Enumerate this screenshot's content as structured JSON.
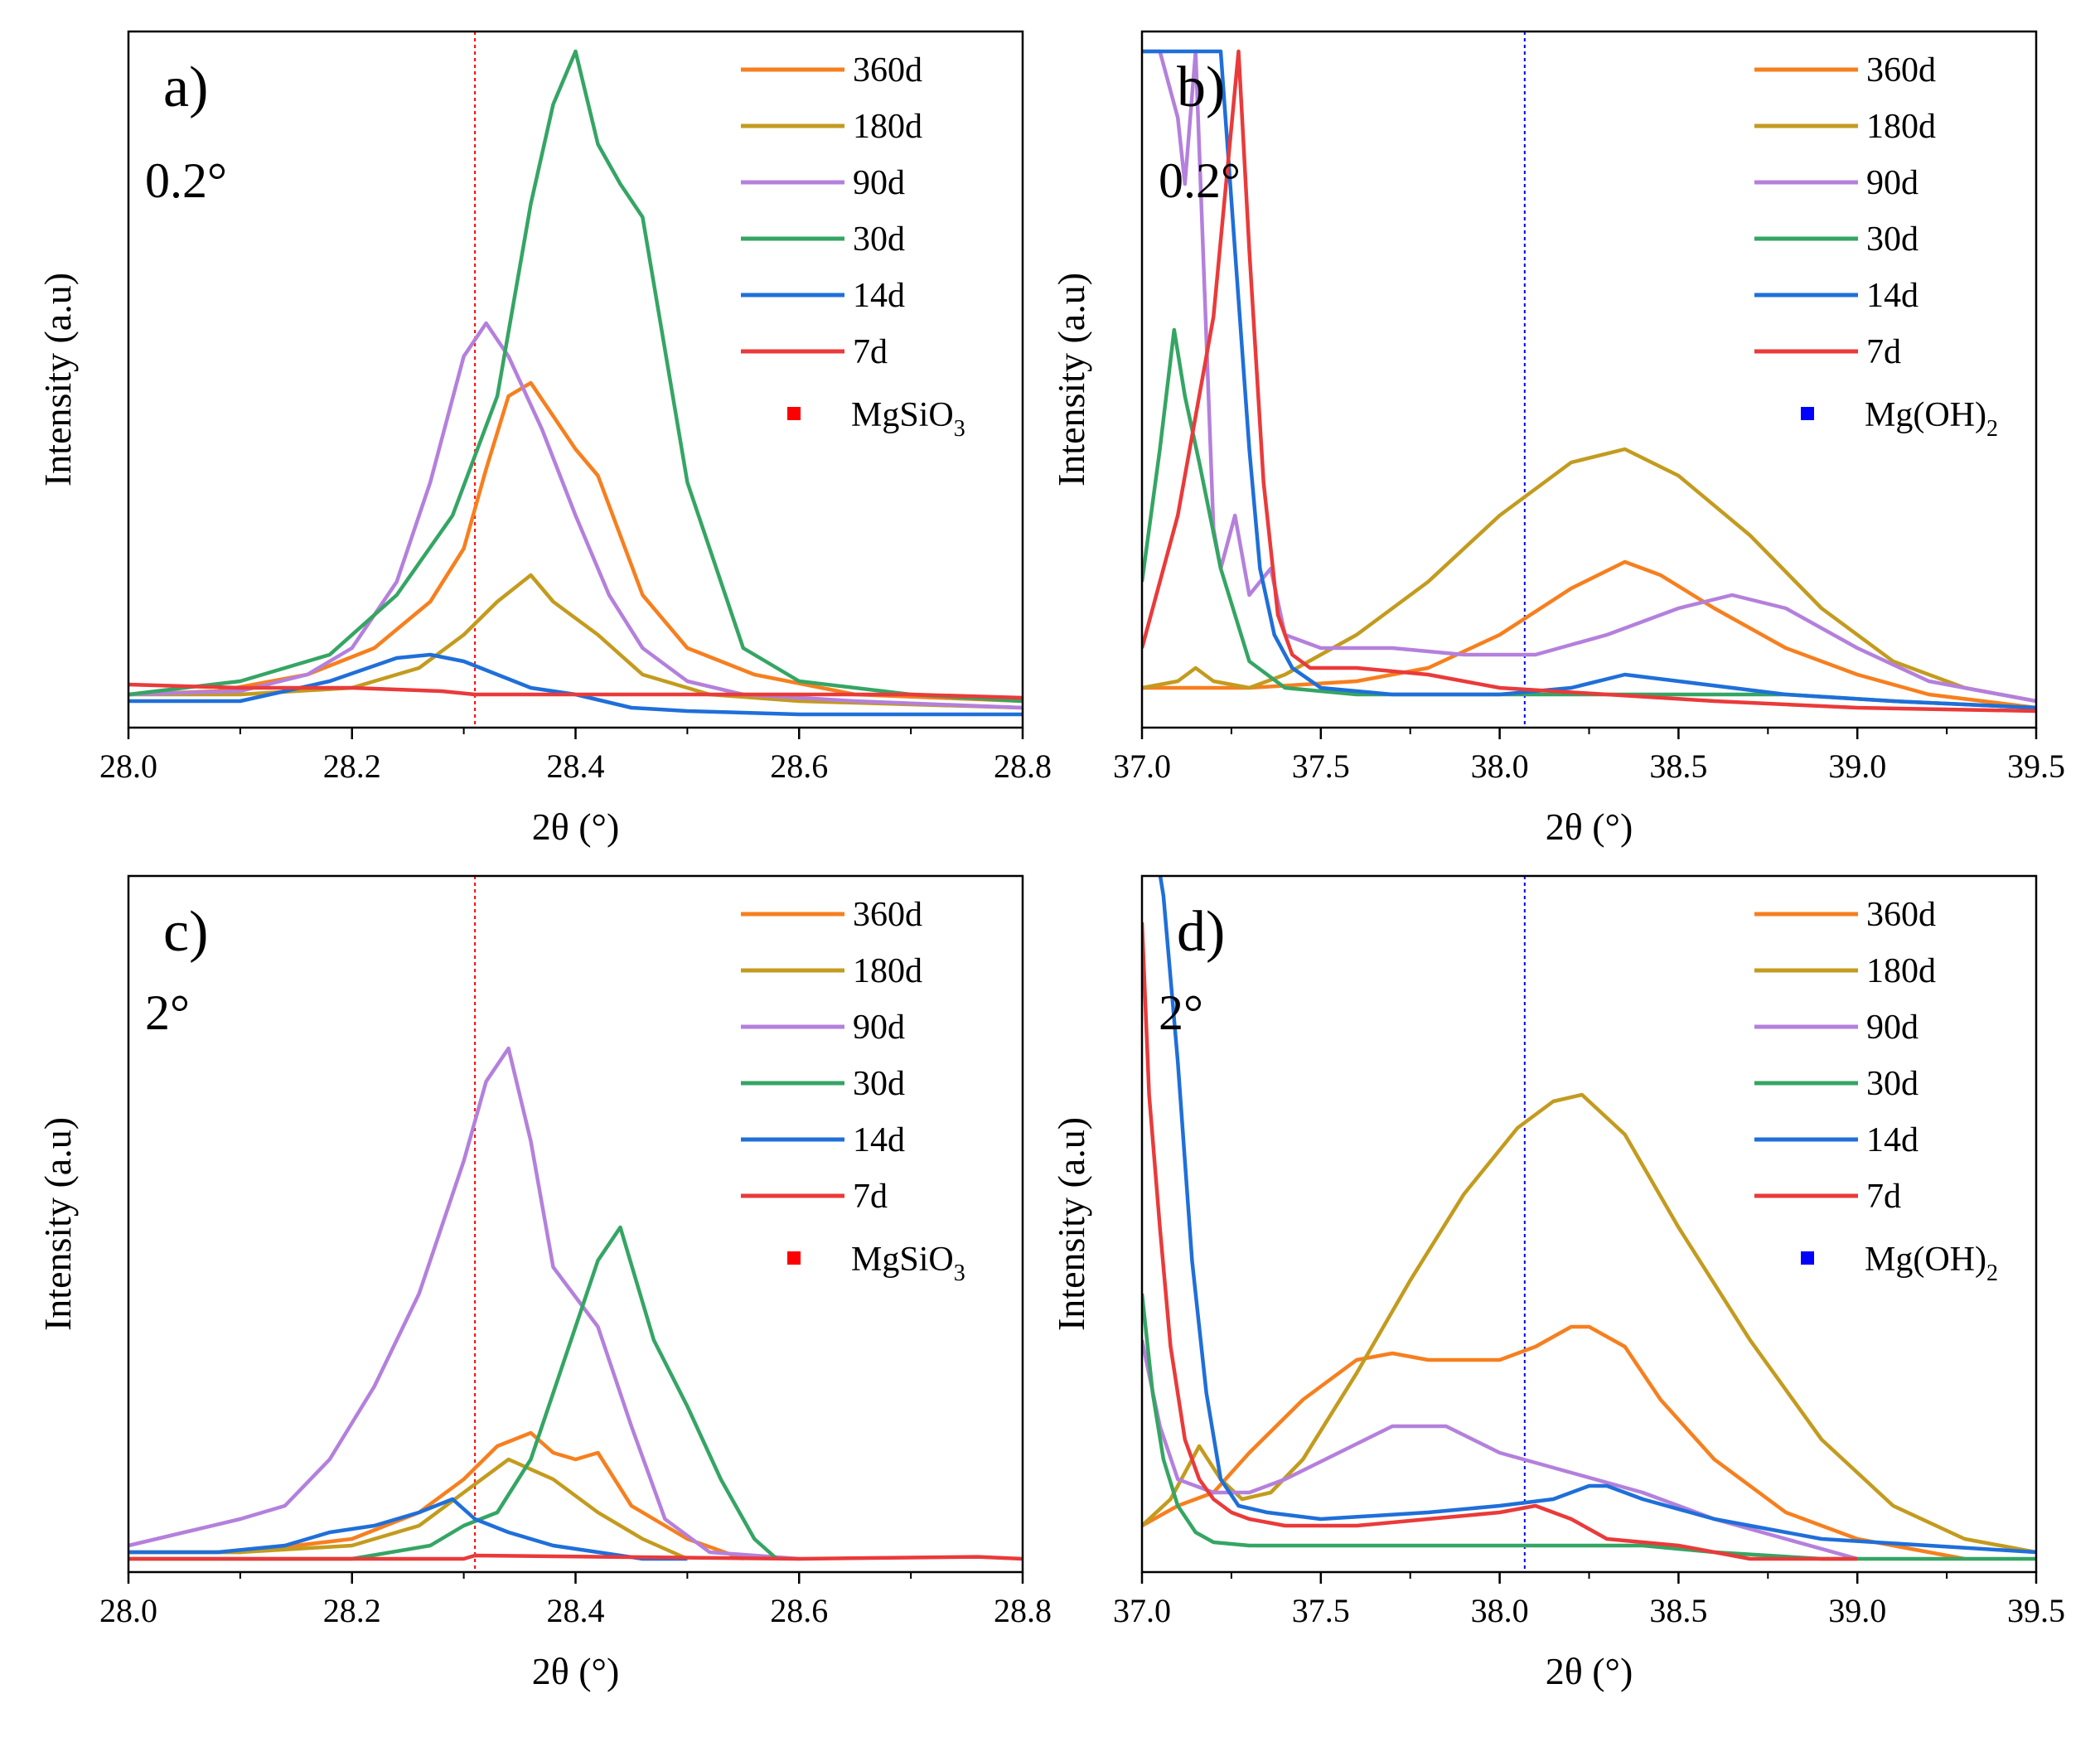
{
  "series_colors": {
    "360d": "#f77f1e",
    "180d": "#c39b1e",
    "90d": "#b480dc",
    "30d": "#35a564",
    "14d": "#1f6fd9",
    "7d": "#ea3a3a"
  },
  "chart_data": [
    {
      "id": "a",
      "type": "line",
      "panel_label": "a)",
      "angle_label": "0.2°",
      "xlabel": "2θ (°)",
      "ylabel": "Intensity (a.u)",
      "xlim": [
        28.0,
        28.8
      ],
      "ylim": [
        0,
        1.0
      ],
      "xticks": [
        28.0,
        28.2,
        28.4,
        28.6,
        28.8
      ],
      "xtick_labels": [
        "28.0",
        "28.2",
        "28.4",
        "28.6",
        "28.8"
      ],
      "reference_line": {
        "x": 28.31,
        "color": "#ff0000",
        "label": "MgSiO",
        "sub": "3"
      },
      "legend_position": "top-right",
      "series": [
        {
          "name": "360d",
          "x": [
            28.0,
            28.08,
            28.16,
            28.22,
            28.27,
            28.3,
            28.32,
            28.34,
            28.36,
            28.38,
            28.4,
            28.42,
            28.46,
            28.5,
            28.56,
            28.65,
            28.8
          ],
          "y": [
            0.03,
            0.035,
            0.06,
            0.1,
            0.17,
            0.25,
            0.37,
            0.48,
            0.5,
            0.45,
            0.4,
            0.36,
            0.18,
            0.1,
            0.06,
            0.03,
            0.02
          ]
        },
        {
          "name": "180d",
          "x": [
            28.0,
            28.1,
            28.2,
            28.26,
            28.3,
            28.33,
            28.36,
            28.38,
            28.42,
            28.46,
            28.52,
            28.6,
            28.8
          ],
          "y": [
            0.03,
            0.03,
            0.04,
            0.07,
            0.12,
            0.17,
            0.21,
            0.17,
            0.12,
            0.06,
            0.03,
            0.02,
            0.01
          ]
        },
        {
          "name": "90d",
          "x": [
            28.0,
            28.1,
            28.16,
            28.2,
            28.24,
            28.27,
            28.3,
            28.32,
            28.34,
            28.37,
            28.4,
            28.43,
            28.46,
            28.5,
            28.55,
            28.65,
            28.8
          ],
          "y": [
            0.03,
            0.035,
            0.06,
            0.1,
            0.2,
            0.35,
            0.54,
            0.59,
            0.54,
            0.43,
            0.3,
            0.18,
            0.1,
            0.05,
            0.03,
            0.02,
            0.01
          ]
        },
        {
          "name": "30d",
          "x": [
            28.0,
            28.1,
            28.18,
            28.24,
            28.29,
            28.33,
            28.36,
            28.38,
            28.4,
            28.42,
            28.44,
            28.46,
            28.5,
            28.55,
            28.6,
            28.7,
            28.8
          ],
          "y": [
            0.03,
            0.05,
            0.09,
            0.18,
            0.3,
            0.48,
            0.77,
            0.92,
            1.0,
            0.86,
            0.8,
            0.75,
            0.35,
            0.1,
            0.05,
            0.03,
            0.02
          ]
        },
        {
          "name": "14d",
          "x": [
            28.0,
            28.1,
            28.18,
            28.24,
            28.27,
            28.3,
            28.33,
            28.36,
            28.4,
            28.45,
            28.5,
            28.6,
            28.8
          ],
          "y": [
            0.02,
            0.02,
            0.05,
            0.085,
            0.09,
            0.08,
            0.06,
            0.04,
            0.03,
            0.01,
            0.005,
            0.0,
            0.0
          ]
        },
        {
          "name": "7d",
          "x": [
            28.0,
            28.1,
            28.2,
            28.28,
            28.31,
            28.4,
            28.5,
            28.6,
            28.7,
            28.8
          ],
          "y": [
            0.045,
            0.04,
            0.04,
            0.035,
            0.03,
            0.03,
            0.03,
            0.03,
            0.03,
            0.025
          ]
        }
      ]
    },
    {
      "id": "b",
      "type": "line",
      "panel_label": "b)",
      "angle_label": "0.2°",
      "xlabel": "2θ (°)",
      "ylabel": "Intensity (a.u)",
      "xlim": [
        37.0,
        39.5
      ],
      "ylim": [
        0,
        1.0
      ],
      "xticks": [
        37.0,
        37.5,
        38.0,
        38.5,
        39.0,
        39.5
      ],
      "xtick_labels": [
        "37.0",
        "37.5",
        "38.0",
        "38.5",
        "39.0",
        "39.5"
      ],
      "reference_line": {
        "x": 38.07,
        "color": "#0000ff",
        "label": "Mg(OH)",
        "sub": "2"
      },
      "legend_position": "top-right",
      "series": [
        {
          "name": "360d",
          "x": [
            37.0,
            37.3,
            37.6,
            37.8,
            38.0,
            38.2,
            38.35,
            38.45,
            38.6,
            38.8,
            39.0,
            39.2,
            39.5
          ],
          "y": [
            0.04,
            0.04,
            0.05,
            0.07,
            0.12,
            0.19,
            0.23,
            0.21,
            0.16,
            0.1,
            0.06,
            0.03,
            0.01
          ]
        },
        {
          "name": "180d",
          "x": [
            37.0,
            37.1,
            37.15,
            37.2,
            37.3,
            37.4,
            37.6,
            37.8,
            38.0,
            38.2,
            38.35,
            38.5,
            38.7,
            38.9,
            39.1,
            39.3,
            39.5
          ],
          "y": [
            0.04,
            0.05,
            0.07,
            0.05,
            0.04,
            0.06,
            0.12,
            0.2,
            0.3,
            0.38,
            0.4,
            0.36,
            0.27,
            0.16,
            0.08,
            0.04,
            0.02
          ]
        },
        {
          "name": "90d",
          "x": [
            37.0,
            37.05,
            37.1,
            37.12,
            37.15,
            37.2,
            37.22,
            37.26,
            37.3,
            37.33,
            37.36,
            37.4,
            37.5,
            37.7,
            37.9,
            38.1,
            38.3,
            38.5,
            38.65,
            38.8,
            39.0,
            39.2,
            39.5
          ],
          "y": [
            1.0,
            1.0,
            0.9,
            0.8,
            1.0,
            0.28,
            0.22,
            0.3,
            0.18,
            0.2,
            0.22,
            0.12,
            0.1,
            0.1,
            0.09,
            0.09,
            0.12,
            0.16,
            0.18,
            0.16,
            0.1,
            0.05,
            0.02
          ]
        },
        {
          "name": "30d",
          "x": [
            37.0,
            37.05,
            37.09,
            37.12,
            37.16,
            37.22,
            37.3,
            37.4,
            37.6,
            37.8,
            38.0,
            38.3,
            38.5,
            38.8,
            39.1,
            39.5
          ],
          "y": [
            0.2,
            0.4,
            0.58,
            0.48,
            0.38,
            0.22,
            0.08,
            0.04,
            0.03,
            0.03,
            0.03,
            0.03,
            0.03,
            0.03,
            0.02,
            0.01
          ]
        },
        {
          "name": "14d",
          "x": [
            37.0,
            37.14,
            37.18,
            37.22,
            37.26,
            37.3,
            37.33,
            37.37,
            37.42,
            37.5,
            37.7,
            38.0,
            38.2,
            38.35,
            38.5,
            38.8,
            39.1,
            39.5
          ],
          "y": [
            1.0,
            1.0,
            1.0,
            1.0,
            0.7,
            0.4,
            0.22,
            0.12,
            0.07,
            0.04,
            0.03,
            0.03,
            0.04,
            0.06,
            0.05,
            0.03,
            0.02,
            0.01
          ]
        },
        {
          "name": "7d",
          "x": [
            37.0,
            37.1,
            37.2,
            37.27,
            37.3,
            37.34,
            37.38,
            37.42,
            37.47,
            37.6,
            37.8,
            38.0,
            38.3,
            38.6,
            39.0,
            39.5
          ],
          "y": [
            0.1,
            0.3,
            0.6,
            1.0,
            0.7,
            0.35,
            0.15,
            0.09,
            0.07,
            0.07,
            0.06,
            0.04,
            0.03,
            0.02,
            0.01,
            0.005
          ]
        }
      ]
    },
    {
      "id": "c",
      "type": "line",
      "panel_label": "c)",
      "angle_label": "2°",
      "xlabel": "2θ (°)",
      "ylabel": "Intensity (a.u)",
      "xlim": [
        28.0,
        28.8
      ],
      "ylim": [
        0,
        1.0
      ],
      "xticks": [
        28.0,
        28.2,
        28.4,
        28.6,
        28.8
      ],
      "xtick_labels": [
        "28.0",
        "28.2",
        "28.4",
        "28.6",
        "28.8"
      ],
      "reference_line": {
        "x": 28.31,
        "color": "#ff0000",
        "label": "MgSiO",
        "sub": "3"
      },
      "legend_position": "top-right",
      "series": [
        {
          "name": "360d",
          "x": [
            28.0,
            28.1,
            28.2,
            28.26,
            28.3,
            28.33,
            28.36,
            28.38,
            28.4,
            28.42,
            28.45,
            28.5,
            28.55
          ],
          "y": [
            0.01,
            0.01,
            0.03,
            0.07,
            0.12,
            0.17,
            0.19,
            0.16,
            0.15,
            0.16,
            0.08,
            0.03,
            0.0
          ]
        },
        {
          "name": "180d",
          "x": [
            28.0,
            28.1,
            28.2,
            28.26,
            28.3,
            28.34,
            28.38,
            28.42,
            28.46,
            28.5
          ],
          "y": [
            0.01,
            0.01,
            0.02,
            0.05,
            0.1,
            0.15,
            0.12,
            0.07,
            0.03,
            0.0
          ]
        },
        {
          "name": "90d",
          "x": [
            28.0,
            28.05,
            28.1,
            28.14,
            28.18,
            28.22,
            28.26,
            28.3,
            28.32,
            28.34,
            28.36,
            28.38,
            28.42,
            28.45,
            28.48,
            28.52,
            28.6
          ],
          "y": [
            0.02,
            0.04,
            0.06,
            0.08,
            0.15,
            0.26,
            0.4,
            0.6,
            0.72,
            0.77,
            0.63,
            0.44,
            0.35,
            0.2,
            0.06,
            0.01,
            0.0
          ]
        },
        {
          "name": "30d",
          "x": [
            28.0,
            28.1,
            28.2,
            28.27,
            28.3,
            28.33,
            28.36,
            28.39,
            28.42,
            28.44,
            28.47,
            28.5,
            28.53,
            28.56,
            28.58
          ],
          "y": [
            0.0,
            0.0,
            0.0,
            0.02,
            0.05,
            0.07,
            0.15,
            0.3,
            0.45,
            0.5,
            0.33,
            0.23,
            0.12,
            0.03,
            0.0
          ]
        },
        {
          "name": "14d",
          "x": [
            28.0,
            28.08,
            28.14,
            28.18,
            28.22,
            28.26,
            28.29,
            28.31,
            28.34,
            28.38,
            28.42,
            28.46,
            28.5
          ],
          "y": [
            0.01,
            0.01,
            0.02,
            0.04,
            0.05,
            0.07,
            0.09,
            0.06,
            0.04,
            0.02,
            0.01,
            0.0,
            0.0
          ]
        },
        {
          "name": "7d",
          "x": [
            28.0,
            28.3,
            28.31,
            28.6,
            28.76,
            28.8
          ],
          "y": [
            0.0,
            0.0,
            0.005,
            0.0,
            0.003,
            0.0
          ]
        }
      ]
    },
    {
      "id": "d",
      "type": "line",
      "panel_label": "d)",
      "angle_label": "2°",
      "xlabel": "2θ (°)",
      "ylabel": "Intensity (a.u)",
      "xlim": [
        37.0,
        39.5
      ],
      "ylim": [
        0,
        1.0
      ],
      "xticks": [
        37.0,
        37.5,
        38.0,
        38.5,
        39.0,
        39.5
      ],
      "xtick_labels": [
        "37.0",
        "37.5",
        "38.0",
        "38.5",
        "39.0",
        "39.5"
      ],
      "reference_line": {
        "x": 38.07,
        "color": "#0000ff",
        "label": "Mg(OH)",
        "sub": "2"
      },
      "legend_position": "top-right",
      "series": [
        {
          "name": "360d",
          "x": [
            37.0,
            37.1,
            37.2,
            37.3,
            37.45,
            37.6,
            37.7,
            37.8,
            37.9,
            38.0,
            38.1,
            38.2,
            38.25,
            38.35,
            38.45,
            38.6,
            38.8,
            39.0,
            39.2,
            39.3
          ],
          "y": [
            0.05,
            0.08,
            0.1,
            0.16,
            0.24,
            0.3,
            0.31,
            0.3,
            0.3,
            0.3,
            0.32,
            0.35,
            0.35,
            0.32,
            0.24,
            0.15,
            0.07,
            0.03,
            0.01,
            0.0
          ]
        },
        {
          "name": "180d",
          "x": [
            37.0,
            37.08,
            37.16,
            37.22,
            37.28,
            37.36,
            37.45,
            37.6,
            37.75,
            37.9,
            38.05,
            38.15,
            38.23,
            38.35,
            38.5,
            38.7,
            38.9,
            39.1,
            39.3,
            39.5
          ],
          "y": [
            0.05,
            0.09,
            0.17,
            0.12,
            0.09,
            0.1,
            0.15,
            0.28,
            0.42,
            0.55,
            0.65,
            0.69,
            0.7,
            0.64,
            0.5,
            0.33,
            0.18,
            0.08,
            0.03,
            0.01
          ]
        },
        {
          "name": "90d",
          "x": [
            37.0,
            37.05,
            37.1,
            37.2,
            37.3,
            37.4,
            37.55,
            37.7,
            37.85,
            38.0,
            38.2,
            38.4,
            38.6,
            38.8,
            39.0
          ],
          "y": [
            0.33,
            0.2,
            0.12,
            0.1,
            0.1,
            0.12,
            0.16,
            0.2,
            0.2,
            0.16,
            0.13,
            0.1,
            0.06,
            0.03,
            0.0
          ]
        },
        {
          "name": "30d",
          "x": [
            37.0,
            37.03,
            37.06,
            37.1,
            37.15,
            37.2,
            37.3,
            37.5,
            37.8,
            38.0,
            38.2,
            38.4,
            38.6,
            38.9,
            39.2,
            39.5
          ],
          "y": [
            0.4,
            0.25,
            0.15,
            0.08,
            0.04,
            0.025,
            0.02,
            0.02,
            0.02,
            0.02,
            0.02,
            0.02,
            0.01,
            0.0,
            0.0,
            0.0
          ]
        },
        {
          "name": "14d",
          "x": [
            37.0,
            37.06,
            37.1,
            37.14,
            37.18,
            37.22,
            37.27,
            37.35,
            37.5,
            37.8,
            38.0,
            38.15,
            38.25,
            38.3,
            38.4,
            38.6,
            38.9,
            39.2,
            39.5
          ],
          "y": [
            1.2,
            1.0,
            0.75,
            0.45,
            0.25,
            0.12,
            0.08,
            0.07,
            0.06,
            0.07,
            0.08,
            0.09,
            0.11,
            0.11,
            0.09,
            0.06,
            0.03,
            0.02,
            0.01
          ]
        },
        {
          "name": "7d",
          "x": [
            37.0,
            37.02,
            37.05,
            37.08,
            37.12,
            37.16,
            37.2,
            37.25,
            37.3,
            37.4,
            37.6,
            37.8,
            38.0,
            38.1,
            38.2,
            38.3,
            38.5,
            38.7,
            39.0
          ],
          "y": [
            0.96,
            0.7,
            0.5,
            0.32,
            0.18,
            0.12,
            0.09,
            0.07,
            0.06,
            0.05,
            0.05,
            0.06,
            0.07,
            0.08,
            0.06,
            0.03,
            0.02,
            0.0,
            0.0
          ]
        }
      ]
    }
  ]
}
